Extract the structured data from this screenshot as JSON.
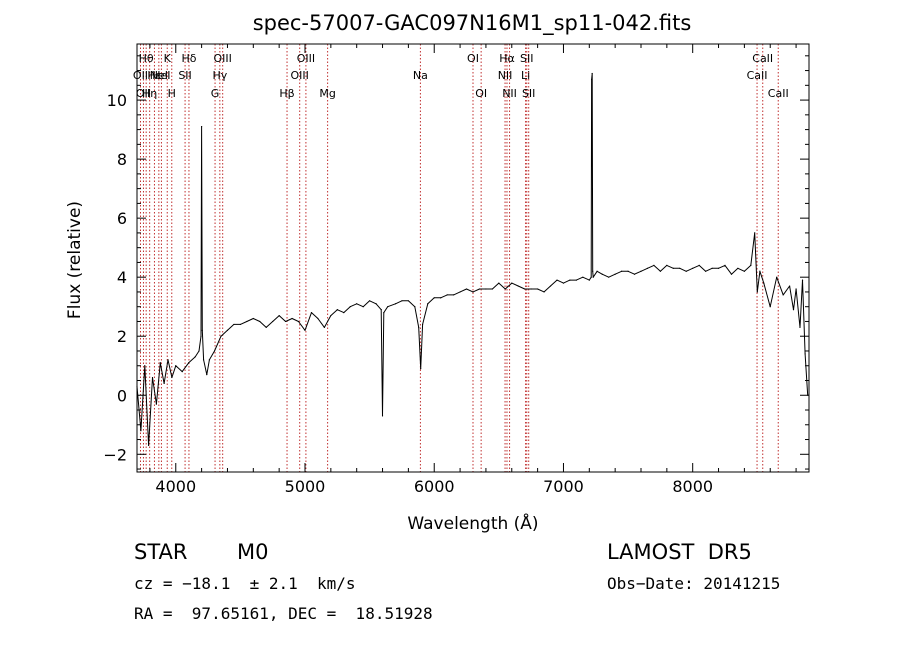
{
  "chart_data": {
    "type": "line",
    "title": "spec-57007-GAC097N16M1_sp11-042.fits",
    "xlabel": "Wavelength (Å)",
    "ylabel": "Flux (relative)",
    "xlim": [
      3700,
      8900
    ],
    "ylim": [
      -2.6,
      11.9
    ],
    "xticks": [
      {
        "value": 4000,
        "label": "4000"
      },
      {
        "value": 5000,
        "label": "5000"
      },
      {
        "value": 6000,
        "label": "6000"
      },
      {
        "value": 7000,
        "label": "7000"
      },
      {
        "value": 8000,
        "label": "8000"
      }
    ],
    "yticks": [
      {
        "value": -2,
        "label": "−2"
      },
      {
        "value": 0,
        "label": "0"
      },
      {
        "value": 2,
        "label": "2"
      },
      {
        "value": 4,
        "label": "4"
      },
      {
        "value": 6,
        "label": "6"
      },
      {
        "value": 8,
        "label": "8"
      },
      {
        "value": 10,
        "label": "10"
      }
    ],
    "grid": false,
    "legend": "none",
    "line_color": "#000000",
    "marker_color": "#c03030",
    "series": [
      {
        "x": [
          3700,
          3730,
          3760,
          3790,
          3820,
          3850,
          3880,
          3910,
          3940,
          3970,
          4000,
          4050,
          4100,
          4150,
          4180,
          4195,
          4200,
          4205,
          4215,
          4240,
          4260,
          4300,
          4350,
          4400,
          4450,
          4500,
          4550,
          4600,
          4650,
          4700,
          4750,
          4800,
          4850,
          4900,
          4950,
          5000,
          5050,
          5100,
          5150,
          5200,
          5250,
          5300,
          5350,
          5400,
          5450,
          5500,
          5550,
          5590,
          5600,
          5610,
          5640,
          5700,
          5750,
          5800,
          5850,
          5880,
          5895,
          5910,
          5950,
          6000,
          6050,
          6100,
          6150,
          6200,
          6250,
          6300,
          6350,
          6400,
          6450,
          6500,
          6550,
          6600,
          6650,
          6700,
          6750,
          6800,
          6850,
          6900,
          6950,
          7000,
          7050,
          7100,
          7150,
          7200,
          7215,
          7218,
          7222,
          7226,
          7230,
          7260,
          7300,
          7350,
          7400,
          7450,
          7500,
          7550,
          7600,
          7650,
          7700,
          7750,
          7800,
          7850,
          7900,
          7950,
          8000,
          8050,
          8100,
          8150,
          8200,
          8250,
          8300,
          8350,
          8400,
          8450,
          8480,
          8500,
          8520,
          8550,
          8600,
          8650,
          8700,
          8750,
          8780,
          8800,
          8830,
          8850,
          8870,
          8890
        ],
        "y": [
          0.3,
          -1.2,
          1.0,
          -1.7,
          0.6,
          -0.3,
          1.1,
          0.4,
          1.2,
          0.6,
          1.0,
          0.8,
          1.1,
          1.3,
          1.5,
          2.0,
          9.1,
          2.2,
          1.2,
          0.7,
          1.2,
          1.5,
          2.0,
          2.2,
          2.4,
          2.4,
          2.5,
          2.6,
          2.5,
          2.3,
          2.5,
          2.7,
          2.5,
          2.6,
          2.5,
          2.2,
          2.8,
          2.6,
          2.3,
          2.7,
          2.9,
          2.8,
          3.0,
          3.1,
          3.0,
          3.2,
          3.1,
          2.9,
          -0.7,
          2.8,
          3.0,
          3.1,
          3.2,
          3.2,
          3.0,
          2.3,
          0.9,
          2.4,
          3.1,
          3.3,
          3.3,
          3.4,
          3.4,
          3.5,
          3.6,
          3.5,
          3.6,
          3.6,
          3.6,
          3.8,
          3.6,
          3.8,
          3.7,
          3.6,
          3.6,
          3.6,
          3.5,
          3.7,
          3.9,
          3.8,
          3.9,
          3.9,
          4.0,
          3.9,
          4.0,
          10.7,
          10.9,
          4.2,
          4.0,
          4.2,
          4.1,
          4.0,
          4.1,
          4.2,
          4.2,
          4.1,
          4.2,
          4.3,
          4.4,
          4.2,
          4.4,
          4.3,
          4.3,
          4.2,
          4.3,
          4.4,
          4.2,
          4.3,
          4.3,
          4.4,
          4.1,
          4.3,
          4.2,
          4.4,
          5.5,
          3.5,
          4.2,
          3.8,
          3.0,
          4.0,
          3.4,
          3.7,
          2.9,
          3.6,
          2.3,
          3.9,
          1.4,
          0.0
        ]
      }
    ],
    "lines": [
      {
        "value": 3727,
        "labels": [
          "OII"
        ],
        "row": 1
      },
      {
        "value": 3750,
        "labels": [
          "OII"
        ],
        "row": 2
      },
      {
        "value": 3771,
        "labels": [
          "Hθ"
        ],
        "row": 0
      },
      {
        "value": 3798,
        "labels": [
          "Hη"
        ],
        "row": 2
      },
      {
        "value": 3835,
        "labels": [
          "Hε"
        ],
        "row": 1
      },
      {
        "value": 3869,
        "labels": [
          "NeI"
        ],
        "row": 1
      },
      {
        "value": 3889,
        "labels": [
          "HeI"
        ],
        "row": 1
      },
      {
        "value": 3934,
        "labels": [
          "K"
        ],
        "row": 0
      },
      {
        "value": 3969,
        "labels": [
          "H"
        ],
        "row": 2
      },
      {
        "value": 4072,
        "labels": [
          "SII"
        ],
        "row": 1
      },
      {
        "value": 4102,
        "labels": [
          "Hδ"
        ],
        "row": 0
      },
      {
        "value": 4304,
        "labels": [
          "G"
        ],
        "row": 2
      },
      {
        "value": 4341,
        "labels": [
          "Hγ"
        ],
        "row": 1
      },
      {
        "value": 4363,
        "labels": [
          "OIII"
        ],
        "row": 0
      },
      {
        "value": 4861,
        "labels": [
          "Hβ"
        ],
        "row": 2
      },
      {
        "value": 4959,
        "labels": [
          "OIII"
        ],
        "row": 1
      },
      {
        "value": 5007,
        "labels": [
          "OIII"
        ],
        "row": 0
      },
      {
        "value": 5175,
        "labels": [
          "Mg"
        ],
        "row": 2
      },
      {
        "value": 5893,
        "labels": [
          "Na"
        ],
        "row": 1
      },
      {
        "value": 6300,
        "labels": [
          "OI"
        ],
        "row": 0
      },
      {
        "value": 6363,
        "labels": [
          "OI"
        ],
        "row": 2
      },
      {
        "value": 6548,
        "labels": [
          "NII"
        ],
        "row": 1
      },
      {
        "value": 6563,
        "labels": [
          "Hα"
        ],
        "row": 0
      },
      {
        "value": 6583,
        "labels": [
          "NII"
        ],
        "row": 2
      },
      {
        "value": 6707,
        "labels": [
          "Li"
        ],
        "row": 1
      },
      {
        "value": 6716,
        "labels": [
          "SII"
        ],
        "row": 0
      },
      {
        "value": 6731,
        "labels": [
          "SII"
        ],
        "row": 2
      },
      {
        "value": 8498,
        "labels": [
          "CaII"
        ],
        "row": 1
      },
      {
        "value": 8542,
        "labels": [
          "CaII"
        ],
        "row": 0
      },
      {
        "value": 8662,
        "labels": [
          "CaII"
        ],
        "row": 2
      }
    ]
  },
  "info": {
    "object_class": "STAR",
    "subclass": "M0",
    "survey": "LAMOST  DR5",
    "redshift": "cz = −18.1  ± 2.1  km/s",
    "obs_date": "Obs−Date: 20141215",
    "coords": "RA =  97.65161, DEC =  18.51928"
  }
}
